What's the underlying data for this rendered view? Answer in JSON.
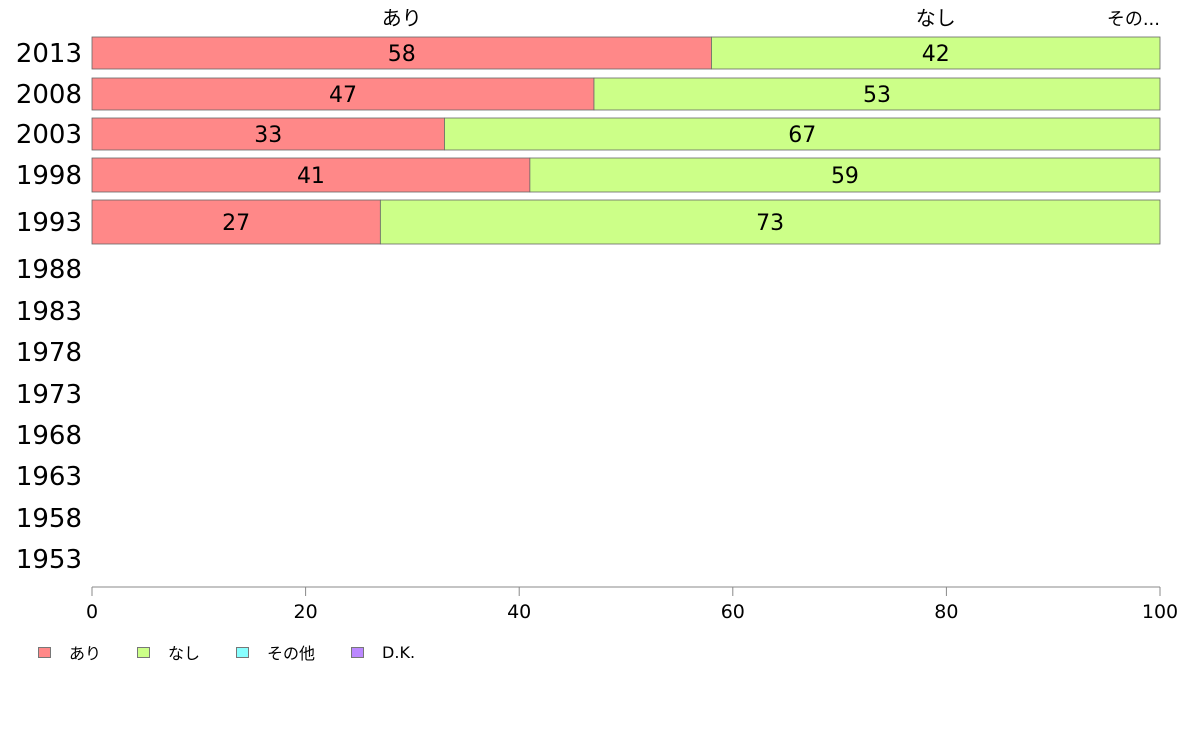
{
  "chart_data": {
    "type": "bar",
    "orientation": "horizontal",
    "stacked": true,
    "categories": [
      "2013",
      "2008",
      "2003",
      "1998",
      "1993",
      "1988",
      "1983",
      "1978",
      "1973",
      "1968",
      "1963",
      "1958",
      "1953"
    ],
    "series": [
      {
        "name": "あり",
        "color": "#ff8888",
        "values": [
          58,
          47,
          33,
          41,
          27,
          null,
          null,
          null,
          null,
          null,
          null,
          null,
          null
        ]
      },
      {
        "name": "なし",
        "color": "#ccff88",
        "values": [
          42,
          53,
          67,
          59,
          73,
          null,
          null,
          null,
          null,
          null,
          null,
          null,
          null
        ]
      },
      {
        "name": "その他",
        "color": "#88ffff",
        "values": [
          0,
          0,
          0,
          0,
          0,
          null,
          null,
          null,
          null,
          null,
          null,
          null,
          null
        ]
      },
      {
        "name": "D.K.",
        "color": "#bb88ff",
        "values": [
          0,
          0,
          0,
          0,
          0,
          null,
          null,
          null,
          null,
          null,
          null,
          null,
          null
        ]
      }
    ],
    "top_labels": [
      "あり",
      "なし",
      "その..."
    ],
    "xlim": [
      0,
      100
    ],
    "xticks": [
      "0",
      "20",
      "40",
      "60",
      "80",
      "100"
    ],
    "legend_position": "bottom-left",
    "grid": false
  }
}
